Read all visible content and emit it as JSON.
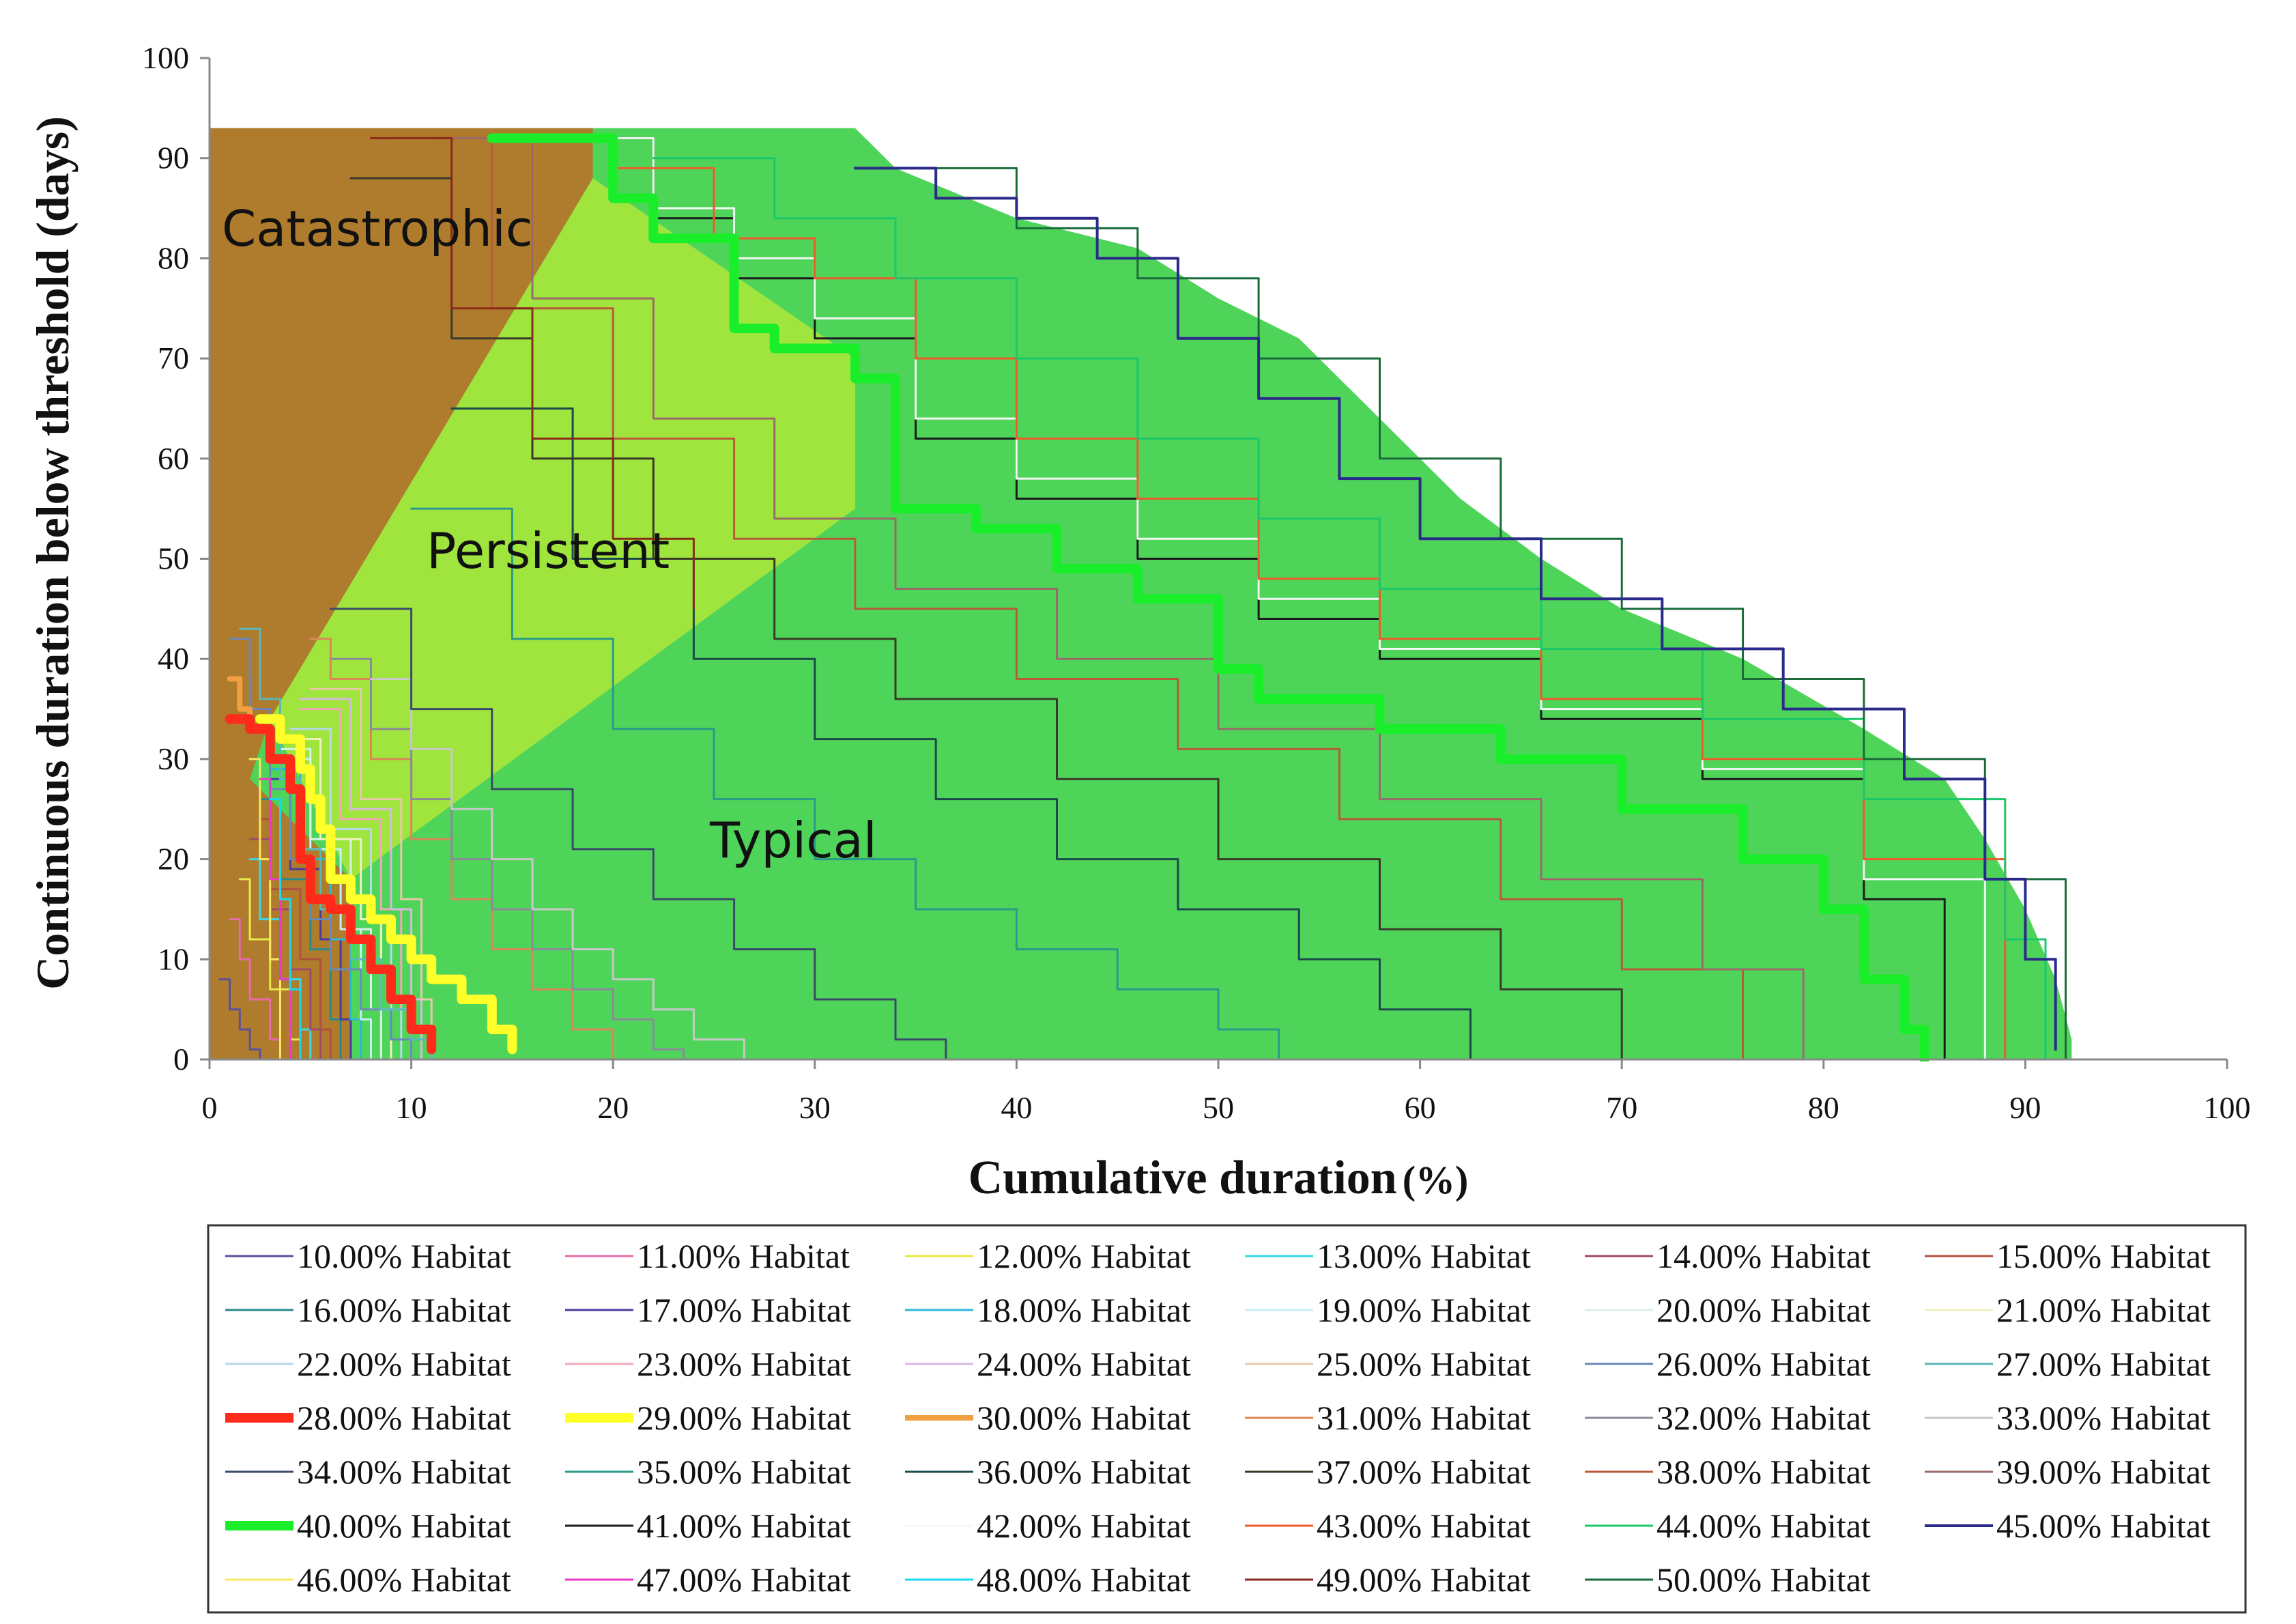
{
  "chart_data": {
    "type": "line",
    "title": "",
    "xlabel": "Cumulative duration",
    "xlabel_unit": "(%)",
    "ylabel": "Continuous duration below threshold (days)",
    "xlim": [
      0,
      100
    ],
    "ylim": [
      0,
      100
    ],
    "x_ticks": [
      "0",
      "10",
      "20",
      "30",
      "40",
      "50",
      "60",
      "70",
      "80",
      "90",
      "100"
    ],
    "y_ticks": [
      "0",
      "10",
      "20",
      "30",
      "40",
      "50",
      "60",
      "70",
      "80",
      "90",
      "100"
    ],
    "grid": false,
    "legend_position": "bottom",
    "regions": [
      {
        "label": "Catastrophic",
        "color": "#b3782c"
      },
      {
        "label": "Persistent",
        "color": "#aee83a"
      },
      {
        "label": "Typical",
        "color": "#4fd45a"
      }
    ],
    "envelope_color": "#4fd45a",
    "series": [
      {
        "name": "10.00% Habitat",
        "color": "#5a4f9a",
        "width": 3,
        "x": [
          0.5,
          1,
          1.5,
          2,
          2.5
        ],
        "y": [
          8,
          5,
          3,
          1,
          0
        ]
      },
      {
        "name": "11.00% Habitat",
        "color": "#e86aa8",
        "width": 3,
        "x": [
          1,
          1.5,
          2,
          3,
          3.5
        ],
        "y": [
          14,
          10,
          6,
          2,
          0
        ]
      },
      {
        "name": "12.00% Habitat",
        "color": "#e8e84a",
        "width": 3,
        "x": [
          1.5,
          2,
          3,
          4,
          4.5
        ],
        "y": [
          18,
          12,
          7,
          2,
          0
        ]
      },
      {
        "name": "13.00% Habitat",
        "color": "#3ad8e8",
        "width": 3,
        "x": [
          2,
          2.5,
          3.5,
          4.5,
          5
        ],
        "y": [
          20,
          14,
          8,
          3,
          0
        ]
      },
      {
        "name": "14.00% Habitat",
        "color": "#a04a6a",
        "width": 3,
        "x": [
          2,
          3,
          4,
          5,
          5.5
        ],
        "y": [
          22,
          15,
          9,
          3,
          0
        ]
      },
      {
        "name": "15.00% Habitat",
        "color": "#b05040",
        "width": 3,
        "x": [
          2.5,
          3,
          4.5,
          5.5,
          6
        ],
        "y": [
          24,
          17,
          10,
          3,
          0
        ]
      },
      {
        "name": "16.00% Habitat",
        "color": "#2a8a8a",
        "width": 3,
        "x": [
          2.5,
          3.5,
          5,
          6,
          6.5
        ],
        "y": [
          26,
          18,
          11,
          4,
          0
        ]
      },
      {
        "name": "17.00% Habitat",
        "color": "#4a3aa0",
        "width": 3,
        "x": [
          3,
          4,
          5.5,
          6.5,
          7
        ],
        "y": [
          28,
          19,
          12,
          4,
          0
        ]
      },
      {
        "name": "18.00% Habitat",
        "color": "#2ab8d8",
        "width": 3,
        "x": [
          3,
          4.5,
          6,
          7,
          7.5
        ],
        "y": [
          29,
          20,
          12,
          4,
          0
        ]
      },
      {
        "name": "19.00% Habitat",
        "color": "#c8eef8",
        "width": 3,
        "x": [
          3.5,
          5,
          6.5,
          7.5,
          8
        ],
        "y": [
          30,
          21,
          13,
          4,
          0
        ]
      },
      {
        "name": "20.00% Habitat",
        "color": "#d8f0e8",
        "width": 3,
        "x": [
          3.5,
          5,
          7,
          8,
          8.5
        ],
        "y": [
          31,
          22,
          13,
          5,
          0
        ]
      },
      {
        "name": "21.00% Habitat",
        "color": "#f0f0c0",
        "width": 3,
        "x": [
          4,
          5.5,
          7.5,
          8.5,
          9
        ],
        "y": [
          32,
          22,
          14,
          5,
          0
        ]
      },
      {
        "name": "22.00% Habitat",
        "color": "#b8d8e8",
        "width": 3,
        "x": [
          4,
          6,
          8,
          9,
          9.5
        ],
        "y": [
          33,
          23,
          14,
          5,
          0
        ]
      },
      {
        "name": "23.00% Habitat",
        "color": "#f0a8b8",
        "width": 3,
        "x": [
          4.5,
          6.5,
          8.5,
          9.5,
          10
        ],
        "y": [
          35,
          24,
          15,
          5,
          0
        ]
      },
      {
        "name": "24.00% Habitat",
        "color": "#d8b8e0",
        "width": 3,
        "x": [
          4.5,
          7,
          9,
          10,
          10.5
        ],
        "y": [
          36,
          25,
          15,
          6,
          0
        ]
      },
      {
        "name": "25.00% Habitat",
        "color": "#e8c8a8",
        "width": 3,
        "x": [
          5,
          7.5,
          9.5,
          10.5,
          11
        ],
        "y": [
          37,
          26,
          16,
          6,
          0
        ]
      },
      {
        "name": "26.00% Habitat",
        "color": "#6a88b8",
        "width": 3,
        "x": [
          1,
          2,
          3,
          4,
          5,
          6,
          7.5,
          9,
          10
        ],
        "y": [
          42,
          35,
          27,
          20,
          14,
          9,
          5,
          2,
          0
        ]
      },
      {
        "name": "27.00% Habitat",
        "color": "#5ab8b8",
        "width": 3,
        "x": [
          1.5,
          2.5,
          3.5,
          4.5,
          5.5,
          7,
          8.5,
          10,
          11
        ],
        "y": [
          43,
          36,
          28,
          21,
          15,
          10,
          5,
          2,
          0
        ]
      },
      {
        "name": "28.00% Habitat",
        "color": "#ff2a1a",
        "width": 14,
        "x": [
          1,
          2,
          3,
          4,
          4.5,
          5,
          6,
          7,
          8,
          9,
          10,
          11
        ],
        "y": [
          34,
          33,
          30,
          27,
          20,
          16,
          15,
          12,
          9,
          6,
          3,
          1
        ]
      },
      {
        "name": "29.00% Habitat",
        "color": "#ffff2a",
        "width": 14,
        "x": [
          2.5,
          3.5,
          4.5,
          5,
          5.5,
          6,
          7,
          8,
          9,
          10,
          11,
          12.5,
          14,
          15
        ],
        "y": [
          34,
          32,
          29,
          26,
          23,
          18,
          16,
          14,
          12,
          10,
          8,
          6,
          3,
          1
        ]
      },
      {
        "name": "30.00% Habitat",
        "color": "#f0a040",
        "width": 8,
        "x": [
          1,
          1.5,
          2,
          3,
          4
        ],
        "y": [
          38,
          35,
          33,
          30,
          28
        ]
      },
      {
        "name": "31.00% Habitat",
        "color": "#d88858",
        "width": 3,
        "x": [
          5,
          6,
          8,
          10,
          12,
          14,
          16,
          18,
          20
        ],
        "y": [
          42,
          38,
          30,
          22,
          16,
          11,
          7,
          3,
          0
        ]
      },
      {
        "name": "32.00% Habitat",
        "color": "#8a8a9a",
        "width": 3,
        "x": [
          6,
          8,
          10,
          12,
          14,
          16,
          18,
          20,
          22,
          23.5
        ],
        "y": [
          40,
          33,
          26,
          20,
          15,
          11,
          7,
          4,
          1,
          0
        ]
      },
      {
        "name": "33.00% Habitat",
        "color": "#c8c8c8",
        "width": 3,
        "x": [
          8,
          10,
          12,
          14,
          16,
          18,
          20,
          22,
          24,
          26.5
        ],
        "y": [
          38,
          31,
          25,
          20,
          15,
          11,
          8,
          5,
          2,
          0
        ]
      },
      {
        "name": "34.00% Habitat",
        "color": "#3a4a6a",
        "width": 3,
        "x": [
          6,
          10,
          14,
          18,
          22,
          26,
          30,
          34,
          36.5
        ],
        "y": [
          45,
          35,
          27,
          21,
          16,
          11,
          6,
          2,
          0
        ]
      },
      {
        "name": "35.00% Habitat",
        "color": "#2a9a8a",
        "width": 3,
        "x": [
          10,
          15,
          20,
          25,
          30,
          35,
          40,
          45,
          50,
          53
        ],
        "y": [
          55,
          42,
          33,
          26,
          20,
          15,
          11,
          7,
          3,
          0
        ]
      },
      {
        "name": "36.00% Habitat",
        "color": "#1a4a4a",
        "width": 3,
        "x": [
          12,
          18,
          24,
          30,
          36,
          42,
          48,
          54,
          58,
          62.5
        ],
        "y": [
          65,
          50,
          40,
          32,
          26,
          20,
          15,
          10,
          5,
          0
        ]
      },
      {
        "name": "37.00% Habitat",
        "color": "#3a3a2a",
        "width": 3,
        "x": [
          7,
          12,
          16,
          22,
          28,
          34,
          42,
          50,
          58,
          64,
          70
        ],
        "y": [
          88,
          72,
          60,
          50,
          42,
          36,
          28,
          20,
          13,
          7,
          0
        ]
      },
      {
        "name": "38.00% Habitat",
        "color": "#b85a3a",
        "width": 3,
        "x": [
          9,
          14,
          20,
          26,
          32,
          40,
          48,
          56,
          64,
          70,
          76
        ],
        "y": [
          92,
          75,
          62,
          52,
          45,
          38,
          31,
          24,
          16,
          9,
          0
        ]
      },
      {
        "name": "39.00% Habitat",
        "color": "#9a6a6a",
        "width": 3,
        "x": [
          11,
          16,
          22,
          28,
          34,
          42,
          50,
          58,
          66,
          74,
          79
        ],
        "y": [
          92,
          76,
          64,
          54,
          47,
          40,
          33,
          26,
          18,
          9,
          0
        ]
      },
      {
        "name": "40.00% Habitat",
        "color": "#1aee2a",
        "width": 14,
        "x": [
          14,
          20,
          22,
          26,
          28,
          32,
          34,
          38,
          42,
          46,
          50,
          52,
          58,
          64,
          70,
          76,
          80,
          82,
          84,
          85
        ],
        "y": [
          92,
          86,
          82,
          73,
          71,
          68,
          55,
          53,
          49,
          46,
          39,
          36,
          33,
          30,
          25,
          20,
          15,
          8,
          3,
          0
        ]
      },
      {
        "name": "41.00% Habitat",
        "color": "#1a1a1a",
        "width": 3,
        "x": [
          16,
          22,
          26,
          30,
          35,
          40,
          46,
          52,
          58,
          66,
          74,
          82,
          86
        ],
        "y": [
          92,
          84,
          78,
          72,
          62,
          56,
          50,
          44,
          40,
          34,
          28,
          16,
          0
        ]
      },
      {
        "name": "42.00% Habitat",
        "color": "#f4f8f4",
        "width": 3,
        "x": [
          16,
          22,
          26,
          30,
          35,
          40,
          46,
          52,
          58,
          66,
          74,
          82,
          88
        ],
        "y": [
          92,
          85,
          80,
          74,
          64,
          58,
          52,
          46,
          41,
          35,
          29,
          18,
          0
        ]
      },
      {
        "name": "43.00% Habitat",
        "color": "#f05a2a",
        "width": 3,
        "x": [
          20,
          25,
          30,
          35,
          40,
          46,
          52,
          58,
          66,
          74,
          82,
          89
        ],
        "y": [
          89,
          82,
          78,
          70,
          62,
          56,
          48,
          42,
          36,
          30,
          20,
          0
        ]
      },
      {
        "name": "44.00% Habitat",
        "color": "#1ac86a",
        "width": 3,
        "x": [
          22,
          28,
          34,
          40,
          46,
          52,
          58,
          66,
          74,
          82,
          89,
          91
        ],
        "y": [
          90,
          84,
          78,
          70,
          62,
          54,
          47,
          41,
          34,
          26,
          12,
          0
        ]
      },
      {
        "name": "45.00% Habitat",
        "color": "#2a2a8a",
        "width": 4,
        "x": [
          32,
          36,
          40,
          44,
          48,
          52,
          56,
          60,
          66,
          72,
          78,
          84,
          88,
          90,
          91.5
        ],
        "y": [
          89,
          86,
          84,
          80,
          72,
          66,
          58,
          52,
          46,
          41,
          35,
          28,
          18,
          10,
          1
        ]
      },
      {
        "name": "46.00% Habitat",
        "color": "#f8e860",
        "width": 3,
        "x": [
          2,
          2.5,
          3,
          3.5
        ],
        "y": [
          30,
          20,
          10,
          0
        ]
      },
      {
        "name": "47.00% Habitat",
        "color": "#e83ac8",
        "width": 3,
        "x": [
          2.5,
          3,
          3.5,
          4
        ],
        "y": [
          28,
          18,
          8,
          0
        ]
      },
      {
        "name": "48.00% Habitat",
        "color": "#1ad8f0",
        "width": 3,
        "x": [
          3,
          3.5,
          4,
          4.5
        ],
        "y": [
          26,
          16,
          7,
          0
        ]
      },
      {
        "name": "49.00% Habitat",
        "color": "#8a2a1a",
        "width": 3,
        "x": [
          8,
          12,
          16,
          20,
          24
        ],
        "y": [
          92,
          75,
          62,
          52,
          45
        ]
      },
      {
        "name": "50.00% Habitat",
        "color": "#1a6a3a",
        "width": 3,
        "x": [
          34,
          40,
          46,
          52,
          58,
          64,
          70,
          76,
          82,
          88,
          92
        ],
        "y": [
          89,
          83,
          78,
          70,
          60,
          52,
          45,
          38,
          30,
          18,
          0
        ]
      }
    ]
  }
}
